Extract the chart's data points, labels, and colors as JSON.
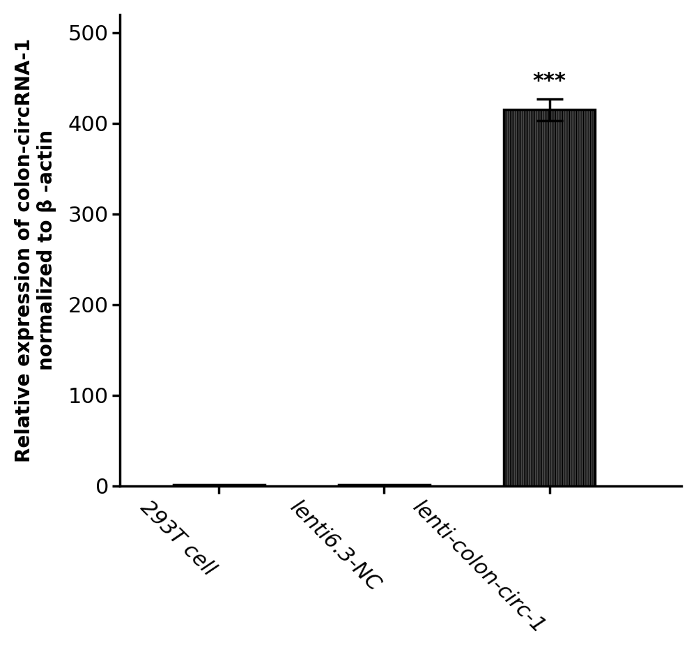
{
  "categories": [
    "293T cell",
    "lenti6.3-NC",
    "lenti-colon-circ-1"
  ],
  "values": [
    1.0,
    1.5,
    415.0
  ],
  "error_bars": [
    0.3,
    0.3,
    12.0
  ],
  "bar_color": "#ffffff",
  "bar_edgecolor": "#000000",
  "bar_linewidth": 2.5,
  "hatch": "||||||||||",
  "ylabel_line1": "Relative expression of colon-circRNA-1",
  "ylabel_line2": "normalized to β -actin",
  "ylim": [
    0,
    520
  ],
  "yticks": [
    0,
    100,
    200,
    300,
    400,
    500
  ],
  "significance_label": "***",
  "bar_width": 0.55,
  "figsize": [
    9.99,
    9.35
  ],
  "dpi": 100,
  "spine_linewidth": 2.5,
  "tick_fontsize": 22,
  "ylabel_fontsize": 20,
  "sig_fontsize": 22,
  "xticklabel_rotation": -45,
  "background_color": "#ffffff",
  "bar_positions": [
    0,
    1,
    2
  ],
  "xlim": [
    -0.6,
    2.8
  ]
}
